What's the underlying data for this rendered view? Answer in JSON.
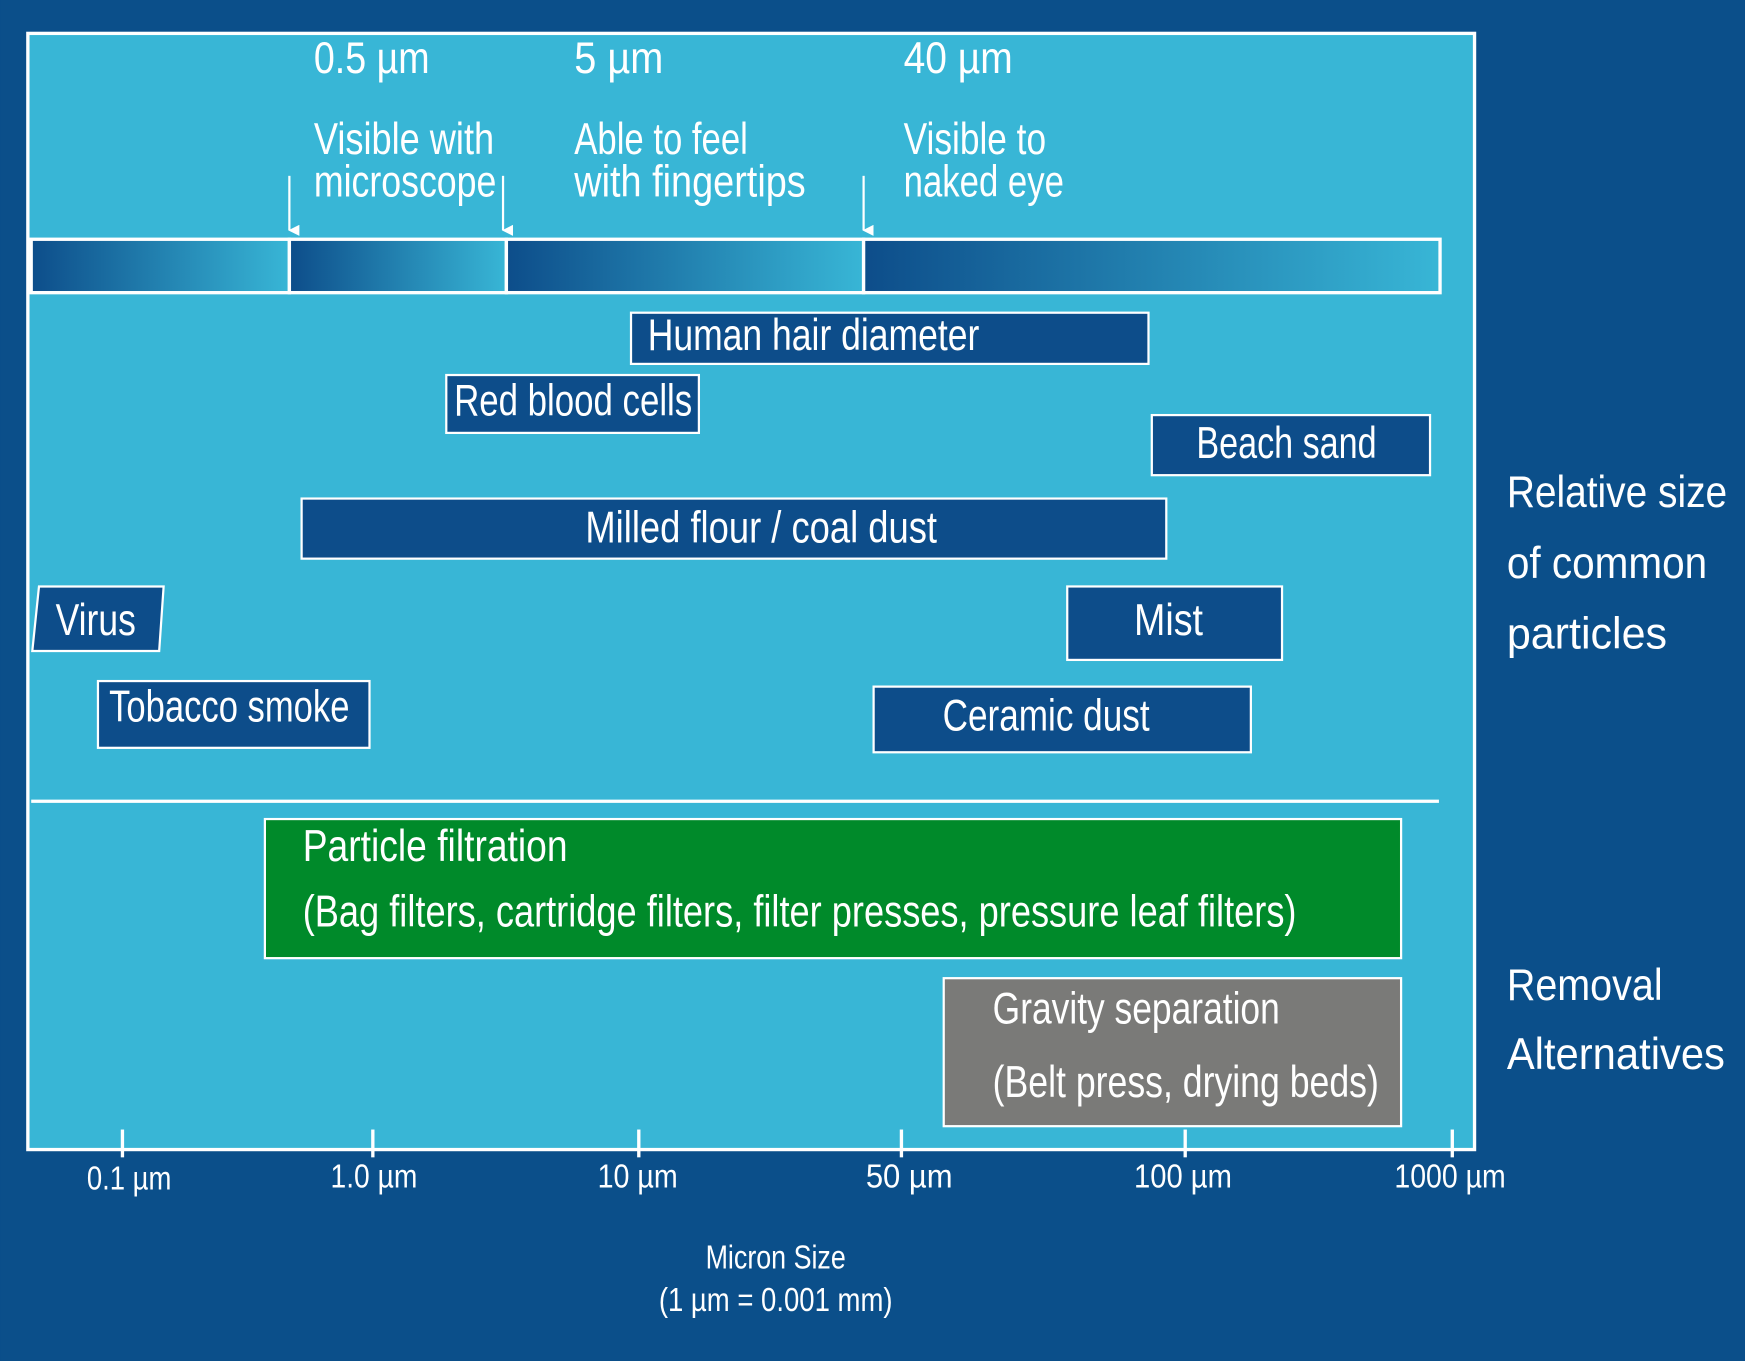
{
  "thresholds": [
    {
      "size": "0.5 µm",
      "lines": [
        "Visible with",
        "microscope"
      ]
    },
    {
      "size": "5 µm",
      "lines": [
        "Able to feel",
        "with fingertips"
      ]
    },
    {
      "size": "40 µm",
      "lines": [
        "Visible to",
        "naked eye"
      ]
    }
  ],
  "particles": [
    "Human hair diameter",
    "Red blood cells",
    "Beach sand",
    "Milled flour / coal dust",
    "Virus",
    "Mist",
    "Tobacco smoke",
    "Ceramic dust"
  ],
  "removal": [
    {
      "title": "Particle filtration",
      "detail": "(Bag filters, cartridge filters, filter presses, pressure leaf filters)"
    },
    {
      "title": "Gravity separation",
      "detail": "(Belt press, drying beds)"
    }
  ],
  "side_labels": {
    "particles": [
      "Relative size",
      "of common",
      "particles"
    ],
    "removal": [
      "Removal",
      "Alternatives"
    ]
  },
  "axis": {
    "ticks": [
      "0.1 µm",
      "1.0 µm",
      "10 µm",
      "50 µm",
      "100 µm",
      "1000 µm"
    ],
    "title": [
      "Micron Size",
      "(1 µm = 0.001 mm)"
    ]
  }
}
